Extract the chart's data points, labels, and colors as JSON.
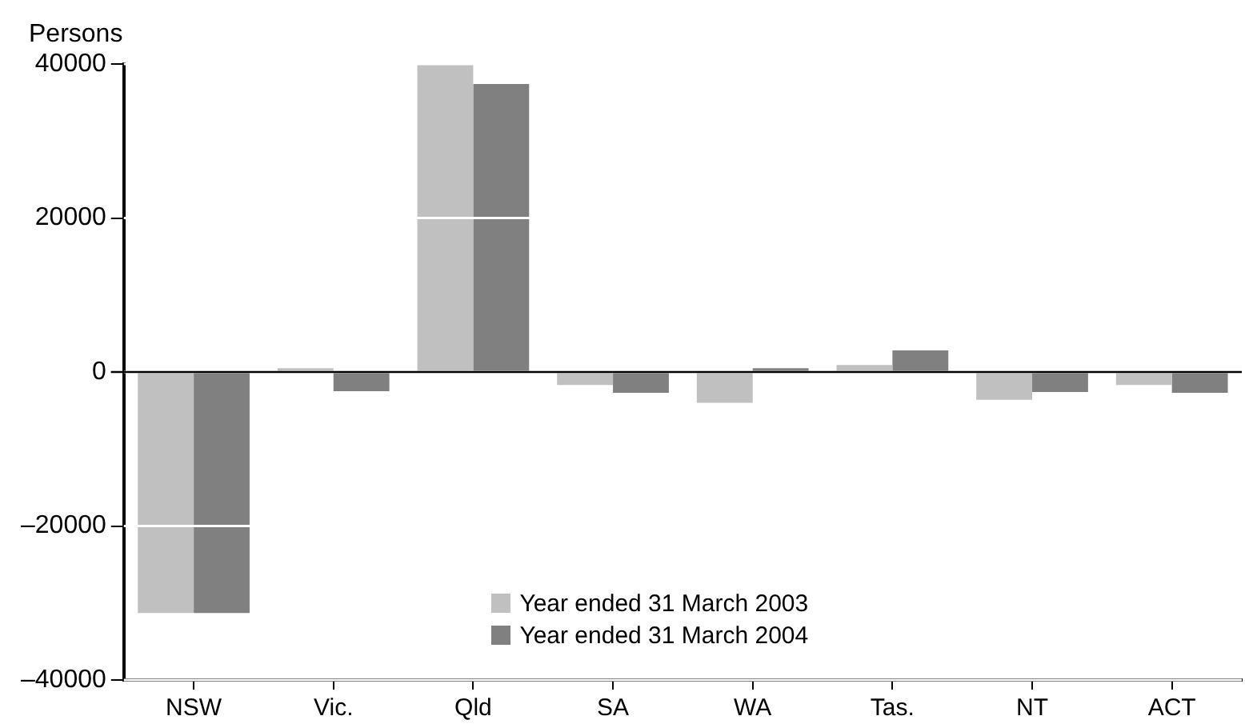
{
  "chart_data": {
    "type": "bar",
    "ylabel": "Persons",
    "categories": [
      "NSW",
      "Vic.",
      "Qld",
      "SA",
      "WA",
      "Tas.",
      "NT",
      "ACT"
    ],
    "series": [
      {
        "name": "Year ended 31 March 2003",
        "color": "#c0c0c0",
        "values": [
          -31300,
          500,
          39900,
          -1700,
          -4000,
          900,
          -3600,
          -1700
        ]
      },
      {
        "name": "Year ended 31 March 2004",
        "color": "#808080",
        "values": [
          -31300,
          -2500,
          37400,
          -2700,
          500,
          2800,
          -2600,
          -2700
        ]
      }
    ],
    "ylim": [
      -40000,
      40000
    ],
    "yticks": [
      {
        "value": -40000,
        "label": "–40000"
      },
      {
        "value": -20000,
        "label": "–20000"
      },
      0,
      20000,
      40000
    ],
    "grid": "y",
    "legend": "bottom",
    "ref_lines": [
      {
        "axis": "y",
        "value": 0,
        "color": "#000000"
      }
    ]
  }
}
